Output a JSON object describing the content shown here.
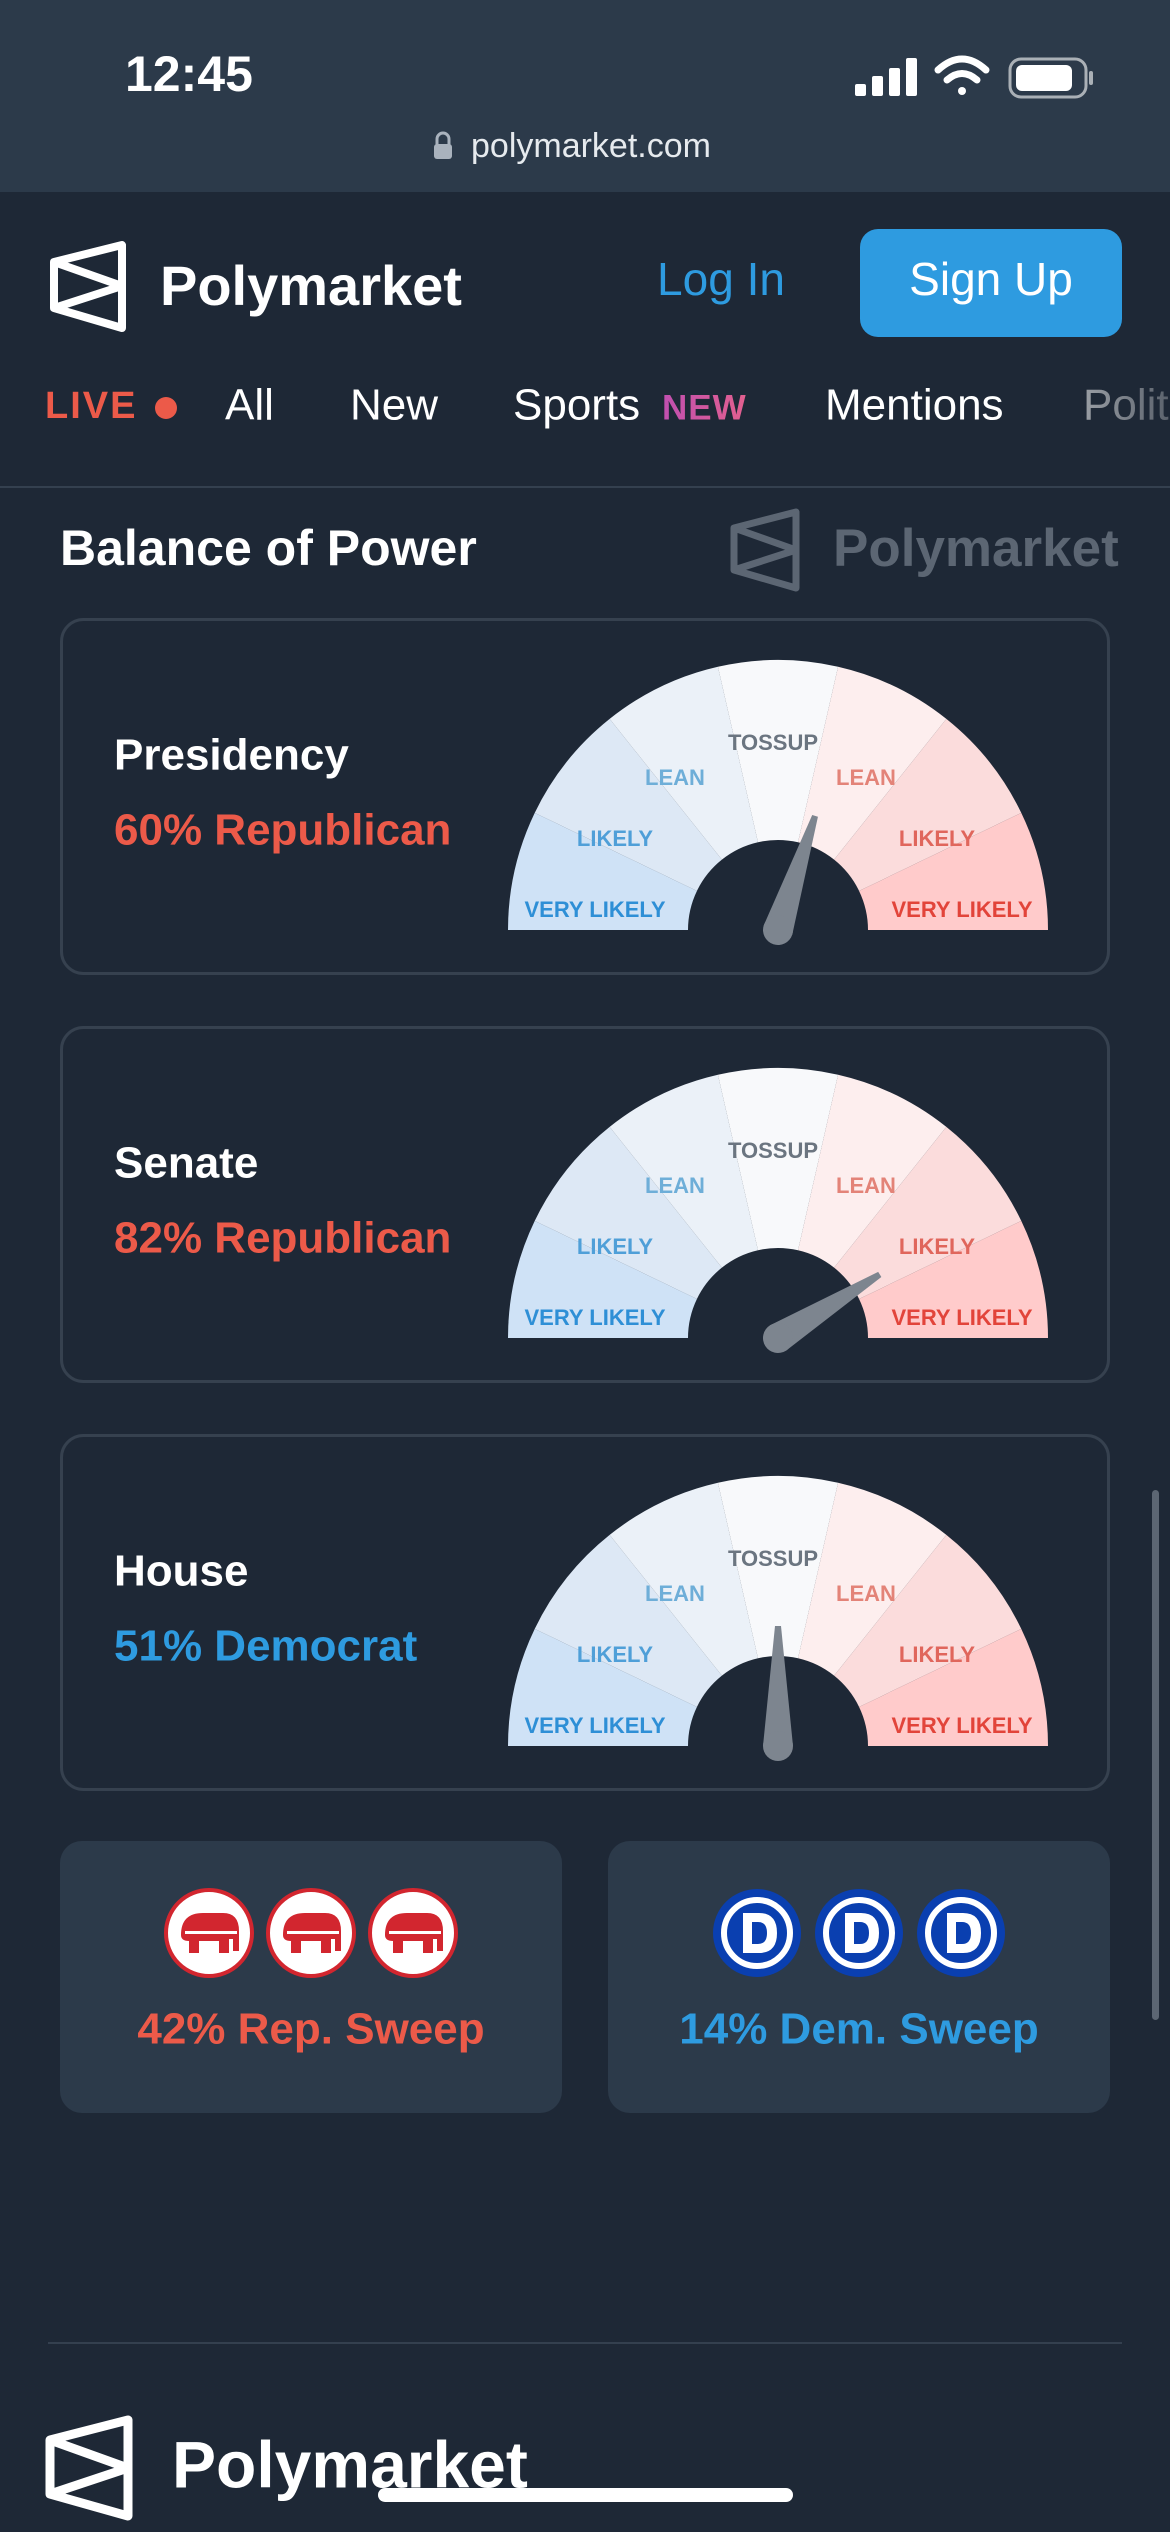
{
  "status_bar": {
    "time": "12:45",
    "url": "polymarket.com"
  },
  "header": {
    "brand": "Polymarket",
    "login": "Log In",
    "signup": "Sign Up"
  },
  "nav": {
    "live": "LIVE",
    "items": [
      "All",
      "New",
      "Sports",
      "Mentions",
      "Politics"
    ],
    "sports_badge": "NEW"
  },
  "section": {
    "title": "Balance of Power",
    "watermark": "Polymarket"
  },
  "gauge_labels": [
    "VERY LIKELY",
    "LIKELY",
    "LEAN",
    "TOSSUP",
    "LEAN",
    "LIKELY",
    "VERY LIKELY"
  ],
  "gauges": [
    {
      "title": "Presidency",
      "result": "60% Republican",
      "color": "#ec5a49"
    },
    {
      "title": "Senate",
      "result": "82% Republican",
      "color": "#ec5a49"
    },
    {
      "title": "House",
      "result": "51% Democrat",
      "color": "#2e9be0"
    }
  ],
  "sweeps": [
    {
      "label": "42% Rep. Sweep",
      "color": "#ec5a49"
    },
    {
      "label": "14% Dem. Sweep",
      "color": "#2e9be0"
    }
  ],
  "footer": {
    "brand": "Polymarket"
  }
}
